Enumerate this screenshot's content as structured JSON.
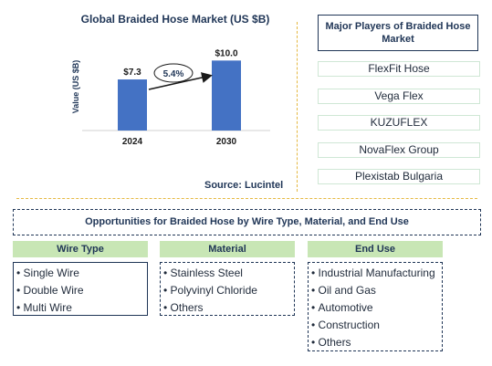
{
  "chart_data": {
    "type": "bar",
    "title": "Global Braided Hose Market (US $B)",
    "ylabel": "Value (US $B)",
    "categories": [
      "2024",
      "2030"
    ],
    "values": [
      7.3,
      10.0
    ],
    "value_labels": [
      "$7.3",
      "$10.0"
    ],
    "annotation": "5.4%",
    "ylim": [
      0,
      12
    ],
    "bar_color": "#4472c4"
  },
  "source": "Source: Lucintel",
  "players": {
    "header": "Major Players of Braided Hose Market",
    "items": [
      "FlexFit Hose",
      "Vega Flex",
      "KUZUFLEX",
      "NovaFlex Group",
      "Plexistab Bulgaria"
    ]
  },
  "opportunities": {
    "title": "Opportunities for Braided Hose by Wire Type, Material, and End Use",
    "categories": [
      {
        "header": "Wire Type",
        "items": [
          "Single Wire",
          "Double Wire",
          "Multi Wire"
        ]
      },
      {
        "header": "Material",
        "items": [
          "Stainless Steel",
          "Polyvinyl Chloride",
          "Others"
        ]
      },
      {
        "header": "End Use",
        "items": [
          "Industrial Manufacturing",
          "Oil and Gas",
          "Automotive",
          "Construction",
          "Others"
        ]
      }
    ]
  }
}
